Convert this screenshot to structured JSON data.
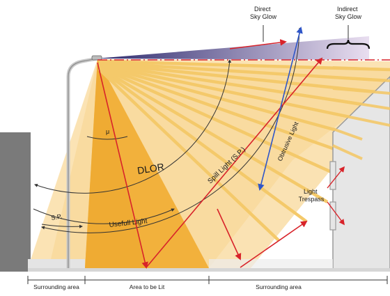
{
  "labels": {
    "direct_sky_glow": [
      "Direct",
      "Sky Glow"
    ],
    "indirect_sky_glow": [
      "Indirect",
      "Sky Glow"
    ],
    "obtrusive_light": "Obtrusive Light",
    "spill_light": "Spill Light (S.P.)",
    "dlor": "DLOR",
    "usefull_light": "Usefull Light",
    "sp": "S.P.",
    "mu": "μ",
    "light_trespass": [
      "Light",
      "Trespass"
    ],
    "surrounding_area_left": "Surrounding area",
    "area_to_be_lit": "Area to be Lit",
    "surrounding_area_right": "Surrounding area"
  },
  "colors": {
    "background": "#ffffff",
    "light_pale": "#fbe3b4",
    "light_mid": "#f7cf80",
    "useful_area": "#f2b13c",
    "beam": "#f4c96a",
    "sky_glow_dark": "#2d2a6e",
    "sky_glow_light": "#d9c9e6",
    "arrow_red": "#d8232a",
    "arrow_blue": "#2f56c8",
    "building_fill": "#e6e6e6",
    "building_stroke": "#9a9a9a",
    "grey_panel": "#7a7a7a",
    "ground": "#d6d6d6",
    "dashed_line": "#d8232a",
    "text": "#1a1a1a"
  }
}
